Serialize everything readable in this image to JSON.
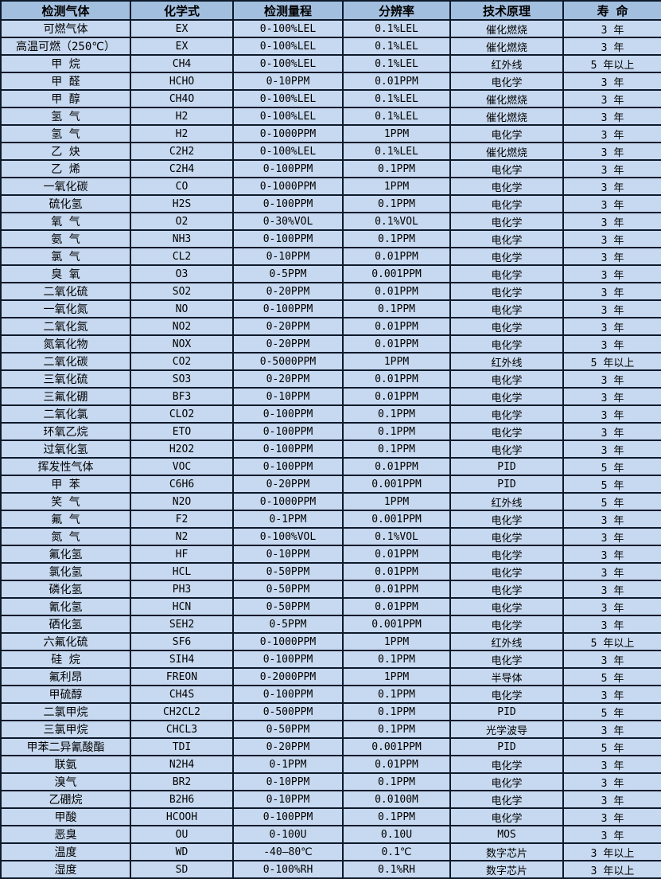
{
  "colors": {
    "header_bg": "#a3bfdf",
    "row_bg": "#c7d9f0",
    "border": "#0e1a2b",
    "text": "#000000"
  },
  "table": {
    "columns": [
      {
        "key": "gas",
        "label": "检测气体"
      },
      {
        "key": "formula",
        "label": "化学式"
      },
      {
        "key": "range",
        "label": "检测量程"
      },
      {
        "key": "resolution",
        "label": "分辨率"
      },
      {
        "key": "principle",
        "label": "技术原理"
      },
      {
        "key": "lifespan",
        "label": "寿 命"
      }
    ],
    "rows": [
      [
        "可燃气体",
        "EX",
        "0-100%LEL",
        "0.1%LEL",
        "催化燃烧",
        "3 年"
      ],
      [
        "高温可燃（250℃）",
        "EX",
        "0-100%LEL",
        "0.1%LEL",
        "催化燃烧",
        "3 年"
      ],
      [
        "甲 烷",
        "CH4",
        "0-100%LEL",
        "0.1%LEL",
        "红外线",
        "5 年以上"
      ],
      [
        "甲 醛",
        "HCHO",
        "0-10PPM",
        "0.01PPM",
        "电化学",
        "3 年"
      ],
      [
        "甲 醇",
        "CH4O",
        "0-100%LEL",
        "0.1%LEL",
        "催化燃烧",
        "3 年"
      ],
      [
        "氢 气",
        "H2",
        "0-100%LEL",
        "0.1%LEL",
        "催化燃烧",
        "3 年"
      ],
      [
        "氢 气",
        "H2",
        "0-1000PPM",
        "1PPM",
        "电化学",
        "3 年"
      ],
      [
        "乙 炔",
        "C2H2",
        "0-100%LEL",
        "0.1%LEL",
        "催化燃烧",
        "3 年"
      ],
      [
        "乙 烯",
        "C2H4",
        "0-100PPM",
        "0.1PPM",
        "电化学",
        "3 年"
      ],
      [
        "一氧化碳",
        "CO",
        "0-1000PPM",
        "1PPM",
        "电化学",
        "3 年"
      ],
      [
        "硫化氢",
        "H2S",
        "0-100PPM",
        "0.1PPM",
        "电化学",
        "3 年"
      ],
      [
        "氧 气",
        "O2",
        "0-30%VOL",
        "0.1%VOL",
        "电化学",
        "3 年"
      ],
      [
        "氨 气",
        "NH3",
        "0-100PPM",
        "0.1PPM",
        "电化学",
        "3 年"
      ],
      [
        "氯 气",
        "CL2",
        "0-10PPM",
        "0.01PPM",
        "电化学",
        "3 年"
      ],
      [
        "臭 氧",
        "O3",
        "0-5PPM",
        "0.001PPM",
        "电化学",
        "3 年"
      ],
      [
        "二氧化硫",
        "SO2",
        "0-20PPM",
        "0.01PPM",
        "电化学",
        "3 年"
      ],
      [
        "一氧化氮",
        "NO",
        "0-100PPM",
        "0.1PPM",
        "电化学",
        "3 年"
      ],
      [
        "二氧化氮",
        "NO2",
        "0-20PPM",
        "0.01PPM",
        "电化学",
        "3 年"
      ],
      [
        "氮氧化物",
        "NOX",
        "0-20PPM",
        "0.01PPM",
        "电化学",
        "3 年"
      ],
      [
        "二氧化碳",
        "CO2",
        "0-5000PPM",
        "1PPM",
        "红外线",
        "5 年以上"
      ],
      [
        "三氧化硫",
        "SO3",
        "0-20PPM",
        "0.01PPM",
        "电化学",
        "3 年"
      ],
      [
        "三氟化硼",
        "BF3",
        "0-10PPM",
        "0.01PPM",
        "电化学",
        "3 年"
      ],
      [
        "二氧化氯",
        "CLO2",
        "0-100PPM",
        "0.1PPM",
        "电化学",
        "3 年"
      ],
      [
        "环氧乙烷",
        "ETO",
        "0-100PPM",
        "0.1PPM",
        "电化学",
        "3 年"
      ],
      [
        "过氧化氢",
        "H2O2",
        "0-100PPM",
        "0.1PPM",
        "电化学",
        "3 年"
      ],
      [
        "挥发性气体",
        "VOC",
        "0-100PPM",
        "0.01PPM",
        "PID",
        "5 年"
      ],
      [
        "甲 苯",
        "C6H6",
        "0-20PPM",
        "0.001PPM",
        "PID",
        "5 年"
      ],
      [
        "笑 气",
        "N2O",
        "0-1000PPM",
        "1PPM",
        "红外线",
        "5 年"
      ],
      [
        "氟 气",
        "F2",
        "0-1PPM",
        "0.001PPM",
        "电化学",
        "3 年"
      ],
      [
        "氮 气",
        "N2",
        "0-100%VOL",
        "0.1%VOL",
        "电化学",
        "3 年"
      ],
      [
        "氟化氢",
        "HF",
        "0-10PPM",
        "0.01PPM",
        "电化学",
        "3 年"
      ],
      [
        "氯化氢",
        "HCL",
        "0-50PPM",
        "0.01PPM",
        "电化学",
        "3 年"
      ],
      [
        "磷化氢",
        "PH3",
        "0-50PPM",
        "0.01PPM",
        "电化学",
        "3 年"
      ],
      [
        "氰化氢",
        "HCN",
        "0-50PPM",
        "0.01PPM",
        "电化学",
        "3 年"
      ],
      [
        "硒化氢",
        "SEH2",
        "0-5PPM",
        "0.001PPM",
        "电化学",
        "3 年"
      ],
      [
        "六氟化硫",
        "SF6",
        "0-1000PPM",
        "1PPM",
        "红外线",
        "5 年以上"
      ],
      [
        "硅 烷",
        "SIH4",
        "0-100PPM",
        "0.1PPM",
        "电化学",
        "3 年"
      ],
      [
        "氟利昂",
        "FREON",
        "0-2000PPM",
        "1PPM",
        "半导体",
        "5 年"
      ],
      [
        "甲硫醇",
        "CH4S",
        "0-100PPM",
        "0.1PPM",
        "电化学",
        "3 年"
      ],
      [
        "二氯甲烷",
        "CH2CL2",
        "0-500PPM",
        "0.1PPM",
        "PID",
        "5 年"
      ],
      [
        "三氯甲烷",
        "CHCL3",
        "0-50PPM",
        "0.1PPM",
        "光学波导",
        "3 年"
      ],
      [
        "甲苯二异氰酸酯",
        "TDI",
        "0-20PPM",
        "0.001PPM",
        "PID",
        "5 年"
      ],
      [
        "联氨",
        "N2H4",
        "0-1PPM",
        "0.01PPM",
        "电化学",
        "3 年"
      ],
      [
        "溴气",
        "BR2",
        "0-10PPM",
        "0.1PPM",
        "电化学",
        "3 年"
      ],
      [
        "乙硼烷",
        "B2H6",
        "0-10PPM",
        "0.0100M",
        "电化学",
        "3 年"
      ],
      [
        "甲酸",
        "HCOOH",
        "0-100PPM",
        "0.1PPM",
        "电化学",
        "3 年"
      ],
      [
        "恶臭",
        "OU",
        "0-100U",
        "0.10U",
        "MOS",
        "3 年"
      ],
      [
        "温度",
        "WD",
        "-40—80℃",
        "0.1℃",
        "数字芯片",
        "3 年以上"
      ],
      [
        "湿度",
        "SD",
        "0-100%RH",
        "0.1%RH",
        "数字芯片",
        "3 年以上"
      ]
    ]
  }
}
